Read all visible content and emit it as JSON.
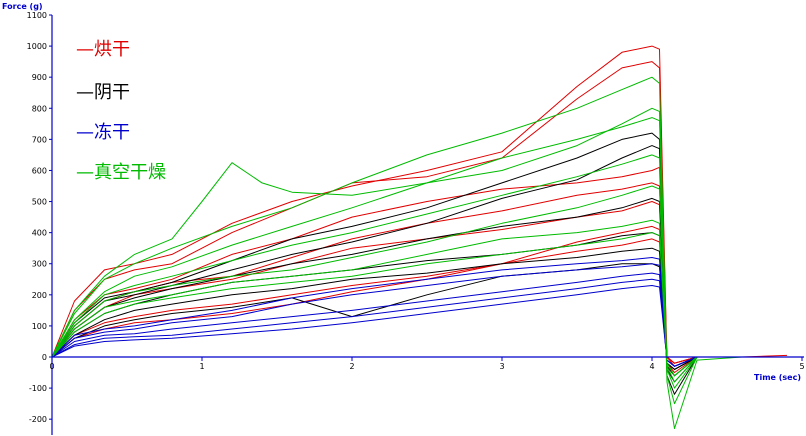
{
  "chart_data": {
    "type": "line",
    "xlabel": "Time (sec)",
    "ylabel": "Force (g)",
    "xlim": [
      0,
      5
    ],
    "ylim": [
      -250,
      1100
    ],
    "x_ticks": [
      "0",
      "1",
      "2",
      "3",
      "4",
      "5"
    ],
    "y_ticks": [
      "-200",
      "-100",
      "0",
      "100",
      "200",
      "300",
      "400",
      "500",
      "600",
      "700",
      "800",
      "900",
      "1000",
      "1100"
    ],
    "legend": [
      {
        "label": "—烘干",
        "color": "#e00000"
      },
      {
        "label": "—阴干",
        "color": "#000000"
      },
      {
        "label": "—冻干",
        "color": "#0000cc"
      },
      {
        "label": "—真空干燥",
        "color": "#00bb00"
      }
    ],
    "series": [
      {
        "group": "烘干",
        "color": "#e00000",
        "x": [
          0,
          0.15,
          0.35,
          0.55,
          0.8,
          1.2,
          1.6,
          2.0,
          2.5,
          3.0,
          3.5,
          3.8,
          4.0,
          4.05,
          4.1,
          4.15,
          4.3,
          4.6,
          4.9
        ],
        "y": [
          0,
          180,
          280,
          300,
          330,
          430,
          500,
          550,
          600,
          660,
          870,
          980,
          1000,
          990,
          -20,
          -50,
          0,
          0,
          0
        ]
      },
      {
        "group": "烘干",
        "color": "#e00000",
        "x": [
          0,
          0.15,
          0.35,
          0.55,
          0.8,
          1.2,
          1.6,
          2.0,
          2.5,
          3.0,
          3.5,
          3.8,
          4.0,
          4.05,
          4.1,
          4.15,
          4.3,
          4.6,
          4.9
        ],
        "y": [
          0,
          150,
          250,
          280,
          300,
          400,
          480,
          560,
          580,
          640,
          830,
          930,
          950,
          930,
          -30,
          -60,
          0,
          0,
          5
        ]
      },
      {
        "group": "烘干",
        "color": "#e00000",
        "x": [
          0,
          0.15,
          0.35,
          0.55,
          0.8,
          1.2,
          1.6,
          2.0,
          2.5,
          3.0,
          3.5,
          3.8,
          4.0,
          4.05,
          4.1,
          4.15,
          4.3,
          4.6,
          4.9
        ],
        "y": [
          0,
          120,
          200,
          220,
          250,
          330,
          380,
          450,
          500,
          540,
          560,
          580,
          600,
          610,
          0,
          -30,
          0,
          0,
          0
        ]
      },
      {
        "group": "烘干",
        "color": "#e00000",
        "x": [
          0,
          0.15,
          0.35,
          0.55,
          0.8,
          1.2,
          1.6,
          2.0,
          2.5,
          3.0,
          3.5,
          3.8,
          4.0,
          4.05,
          4.1,
          4.15,
          4.3,
          4.6,
          4.9
        ],
        "y": [
          0,
          100,
          180,
          210,
          240,
          260,
          320,
          380,
          430,
          470,
          520,
          540,
          560,
          550,
          0,
          -20,
          0,
          0,
          0
        ]
      },
      {
        "group": "烘干",
        "color": "#e00000",
        "x": [
          0,
          0.15,
          0.35,
          0.55,
          0.8,
          1.2,
          1.6,
          2.0,
          2.5,
          3.0,
          3.5,
          3.8,
          4.0,
          4.05,
          4.1,
          4.15,
          4.3,
          4.6,
          4.9
        ],
        "y": [
          0,
          90,
          160,
          200,
          220,
          250,
          300,
          350,
          380,
          410,
          450,
          470,
          500,
          490,
          0,
          -20,
          0,
          0,
          0
        ]
      },
      {
        "group": "烘干",
        "color": "#e00000",
        "x": [
          0,
          0.15,
          0.35,
          0.55,
          0.8,
          1.2,
          1.6,
          2.0,
          2.5,
          3.0,
          3.5,
          3.8,
          4.0,
          4.05,
          4.1,
          4.15,
          4.3,
          4.6,
          4.9
        ],
        "y": [
          0,
          70,
          110,
          130,
          150,
          170,
          200,
          230,
          260,
          300,
          340,
          360,
          380,
          370,
          0,
          -20,
          0,
          0,
          0
        ]
      },
      {
        "group": "烘干",
        "color": "#e00000",
        "x": [
          0,
          0.15,
          0.35,
          0.55,
          0.8,
          1.2,
          1.6,
          2.0,
          2.5,
          3.0,
          3.5,
          3.8,
          4.0,
          4.05,
          4.1,
          4.15,
          4.3,
          4.6,
          4.9
        ],
        "y": [
          0,
          60,
          90,
          110,
          120,
          140,
          170,
          210,
          250,
          300,
          370,
          400,
          420,
          410,
          0,
          -20,
          0,
          0,
          0
        ]
      },
      {
        "group": "阴干",
        "color": "#000000",
        "x": [
          0,
          0.15,
          0.35,
          0.55,
          0.8,
          1.2,
          1.6,
          2.0,
          2.5,
          3.0,
          3.5,
          3.8,
          4.0,
          4.05,
          4.1,
          4.15,
          4.3,
          4.6,
          4.9
        ],
        "y": [
          0,
          110,
          190,
          210,
          240,
          310,
          380,
          420,
          480,
          560,
          640,
          700,
          720,
          700,
          -60,
          -120,
          0,
          0,
          0
        ]
      },
      {
        "group": "阴干",
        "color": "#000000",
        "x": [
          0,
          0.15,
          0.35,
          0.55,
          0.8,
          1.2,
          1.6,
          2.0,
          2.5,
          3.0,
          3.5,
          3.8,
          4.0,
          4.05,
          4.1,
          4.15,
          4.3,
          4.6,
          4.9
        ],
        "y": [
          0,
          100,
          180,
          200,
          230,
          280,
          330,
          370,
          430,
          510,
          570,
          640,
          680,
          670,
          -40,
          -80,
          0,
          0,
          0
        ]
      },
      {
        "group": "阴干",
        "color": "#000000",
        "x": [
          0,
          0.15,
          0.35,
          0.55,
          0.8,
          1.2,
          1.6,
          2.0,
          2.5,
          3.0,
          3.5,
          3.8,
          4.0,
          4.05,
          4.1,
          4.15,
          4.3,
          4.6,
          4.9
        ],
        "y": [
          0,
          90,
          160,
          190,
          220,
          260,
          300,
          330,
          380,
          420,
          450,
          480,
          510,
          500,
          -30,
          -60,
          0,
          0,
          0
        ]
      },
      {
        "group": "阴干",
        "color": "#000000",
        "x": [
          0,
          0.15,
          0.35,
          0.55,
          0.8,
          1.2,
          1.6,
          2.0,
          2.5,
          3.0,
          3.5,
          3.8,
          4.0,
          4.05,
          4.1,
          4.15,
          4.3,
          4.6,
          4.9
        ],
        "y": [
          0,
          80,
          140,
          170,
          200,
          240,
          260,
          280,
          310,
          330,
          360,
          390,
          400,
          390,
          -20,
          -40,
          0,
          0,
          0
        ]
      },
      {
        "group": "阴干",
        "color": "#000000",
        "x": [
          0,
          0.15,
          0.35,
          0.55,
          0.8,
          1.2,
          1.6,
          2.0,
          2.5,
          3.0,
          3.5,
          3.8,
          4.0,
          4.05,
          4.1,
          4.15,
          4.3,
          4.6,
          4.9
        ],
        "y": [
          0,
          70,
          120,
          150,
          170,
          200,
          220,
          250,
          270,
          300,
          320,
          340,
          350,
          340,
          -20,
          -40,
          0,
          0,
          0
        ]
      },
      {
        "group": "阴干",
        "color": "#000000",
        "x": [
          0,
          0.15,
          0.35,
          0.55,
          0.8,
          1.2,
          1.6,
          2.0,
          2.5,
          3.0,
          3.5,
          3.8,
          4.0,
          4.05,
          4.1,
          4.15,
          4.3,
          4.6,
          4.9
        ],
        "y": [
          0,
          60,
          100,
          120,
          140,
          160,
          190,
          130,
          200,
          260,
          280,
          300,
          300,
          290,
          -20,
          -40,
          0,
          0,
          0
        ]
      },
      {
        "group": "冻干",
        "color": "#0000cc",
        "x": [
          0,
          0.15,
          0.35,
          0.55,
          0.8,
          1.2,
          1.6,
          2.0,
          2.5,
          3.0,
          3.5,
          3.8,
          4.0,
          4.05,
          4.1,
          4.15,
          4.3,
          4.6,
          4.9
        ],
        "y": [
          0,
          70,
          90,
          100,
          120,
          150,
          190,
          220,
          250,
          280,
          300,
          310,
          320,
          315,
          -10,
          -30,
          0,
          0,
          0
        ]
      },
      {
        "group": "冻干",
        "color": "#0000cc",
        "x": [
          0,
          0.15,
          0.35,
          0.55,
          0.8,
          1.2,
          1.6,
          2.0,
          2.5,
          3.0,
          3.5,
          3.8,
          4.0,
          4.05,
          4.1,
          4.15,
          4.3,
          4.6,
          4.9
        ],
        "y": [
          0,
          60,
          80,
          90,
          110,
          130,
          170,
          200,
          230,
          260,
          280,
          290,
          300,
          295,
          -10,
          -30,
          0,
          0,
          0
        ]
      },
      {
        "group": "冻干",
        "color": "#0000cc",
        "x": [
          0,
          0.15,
          0.35,
          0.55,
          0.8,
          1.2,
          1.6,
          2.0,
          2.5,
          3.0,
          3.5,
          3.8,
          4.0,
          4.05,
          4.1,
          4.15,
          4.3,
          4.6,
          4.9
        ],
        "y": [
          0,
          50,
          70,
          75,
          90,
          110,
          130,
          150,
          180,
          210,
          240,
          260,
          270,
          265,
          -10,
          -30,
          0,
          0,
          0
        ]
      },
      {
        "group": "冻干",
        "color": "#0000cc",
        "x": [
          0,
          0.15,
          0.35,
          0.55,
          0.8,
          1.2,
          1.6,
          2.0,
          2.5,
          3.0,
          3.5,
          3.8,
          4.0,
          4.05,
          4.1,
          4.15,
          4.3,
          4.6,
          4.9
        ],
        "y": [
          0,
          40,
          60,
          65,
          70,
          90,
          110,
          130,
          160,
          190,
          220,
          240,
          250,
          245,
          -10,
          -30,
          0,
          0,
          0
        ]
      },
      {
        "group": "冻干",
        "color": "#0000cc",
        "x": [
          0,
          0.15,
          0.35,
          0.55,
          0.8,
          1.2,
          1.6,
          2.0,
          2.5,
          3.0,
          3.5,
          3.8,
          4.0,
          4.05,
          4.1,
          4.15,
          4.3,
          4.6,
          4.9
        ],
        "y": [
          0,
          35,
          50,
          55,
          60,
          75,
          90,
          110,
          140,
          170,
          200,
          220,
          230,
          225,
          -10,
          -30,
          0,
          0,
          0
        ]
      },
      {
        "group": "真空干燥",
        "color": "#00bb00",
        "x": [
          0,
          0.15,
          0.35,
          0.55,
          0.8,
          1.0,
          1.2,
          1.4,
          1.6,
          2.0,
          2.5,
          3.0,
          3.5,
          3.8,
          4.0,
          4.05,
          4.1,
          4.15,
          4.3,
          4.6,
          4.9
        ],
        "y": [
          0,
          150,
          260,
          330,
          380,
          500,
          625,
          560,
          530,
          520,
          560,
          600,
          680,
          750,
          800,
          790,
          -80,
          -230,
          -10,
          0,
          0
        ]
      },
      {
        "group": "真空干燥",
        "color": "#00bb00",
        "x": [
          0,
          0.15,
          0.35,
          0.55,
          0.8,
          1.2,
          1.6,
          2.0,
          2.5,
          3.0,
          3.5,
          3.8,
          4.0,
          4.05,
          4.1,
          4.15,
          4.3,
          4.6,
          4.9
        ],
        "y": [
          0,
          140,
          250,
          300,
          350,
          420,
          480,
          560,
          650,
          720,
          800,
          860,
          900,
          880,
          -60,
          -150,
          0,
          0,
          0
        ]
      },
      {
        "group": "真空干燥",
        "color": "#00bb00",
        "x": [
          0,
          0.15,
          0.35,
          0.55,
          0.8,
          1.2,
          1.6,
          2.0,
          2.5,
          3.0,
          3.5,
          3.8,
          4.0,
          4.05,
          4.1,
          4.15,
          4.3,
          4.6,
          4.9
        ],
        "y": [
          0,
          120,
          210,
          260,
          290,
          360,
          420,
          480,
          560,
          640,
          700,
          740,
          770,
          760,
          -40,
          -100,
          0,
          0,
          0
        ]
      },
      {
        "group": "真空干燥",
        "color": "#00bb00",
        "x": [
          0,
          0.15,
          0.35,
          0.55,
          0.8,
          1.2,
          1.6,
          2.0,
          2.5,
          3.0,
          3.5,
          3.8,
          4.0,
          4.05,
          4.1,
          4.15,
          4.3,
          4.6,
          4.9
        ],
        "y": [
          0,
          110,
          200,
          230,
          260,
          310,
          360,
          400,
          460,
          520,
          580,
          620,
          650,
          640,
          -30,
          -80,
          0,
          0,
          0
        ]
      },
      {
        "group": "真空干燥",
        "color": "#00bb00",
        "x": [
          0,
          0.15,
          0.35,
          0.55,
          0.8,
          1.2,
          1.6,
          2.0,
          2.5,
          3.0,
          3.5,
          3.8,
          4.0,
          4.05,
          4.1,
          4.15,
          4.3,
          4.6,
          4.9
        ],
        "y": [
          0,
          100,
          180,
          210,
          230,
          260,
          280,
          320,
          370,
          430,
          480,
          520,
          550,
          540,
          -20,
          -60,
          0,
          0,
          0
        ]
      },
      {
        "group": "真空干燥",
        "color": "#00bb00",
        "x": [
          0,
          0.15,
          0.35,
          0.55,
          0.8,
          1.2,
          1.6,
          2.0,
          2.5,
          3.0,
          3.5,
          3.8,
          4.0,
          4.05,
          4.1,
          4.15,
          4.3,
          4.6,
          4.9
        ],
        "y": [
          0,
          90,
          160,
          180,
          200,
          240,
          260,
          280,
          330,
          380,
          400,
          420,
          440,
          430,
          -20,
          -60,
          0,
          0,
          0
        ]
      },
      {
        "group": "真空干燥",
        "color": "#00bb00",
        "x": [
          0,
          0.15,
          0.35,
          0.55,
          0.8,
          1.2,
          1.6,
          2.0,
          2.5,
          3.0,
          3.5,
          3.8,
          4.0,
          4.05,
          4.1,
          4.15,
          4.3,
          4.6,
          4.9
        ],
        "y": [
          0,
          80,
          140,
          170,
          190,
          220,
          240,
          260,
          300,
          330,
          360,
          380,
          400,
          390,
          -20,
          -60,
          0,
          0,
          0
        ]
      }
    ]
  }
}
